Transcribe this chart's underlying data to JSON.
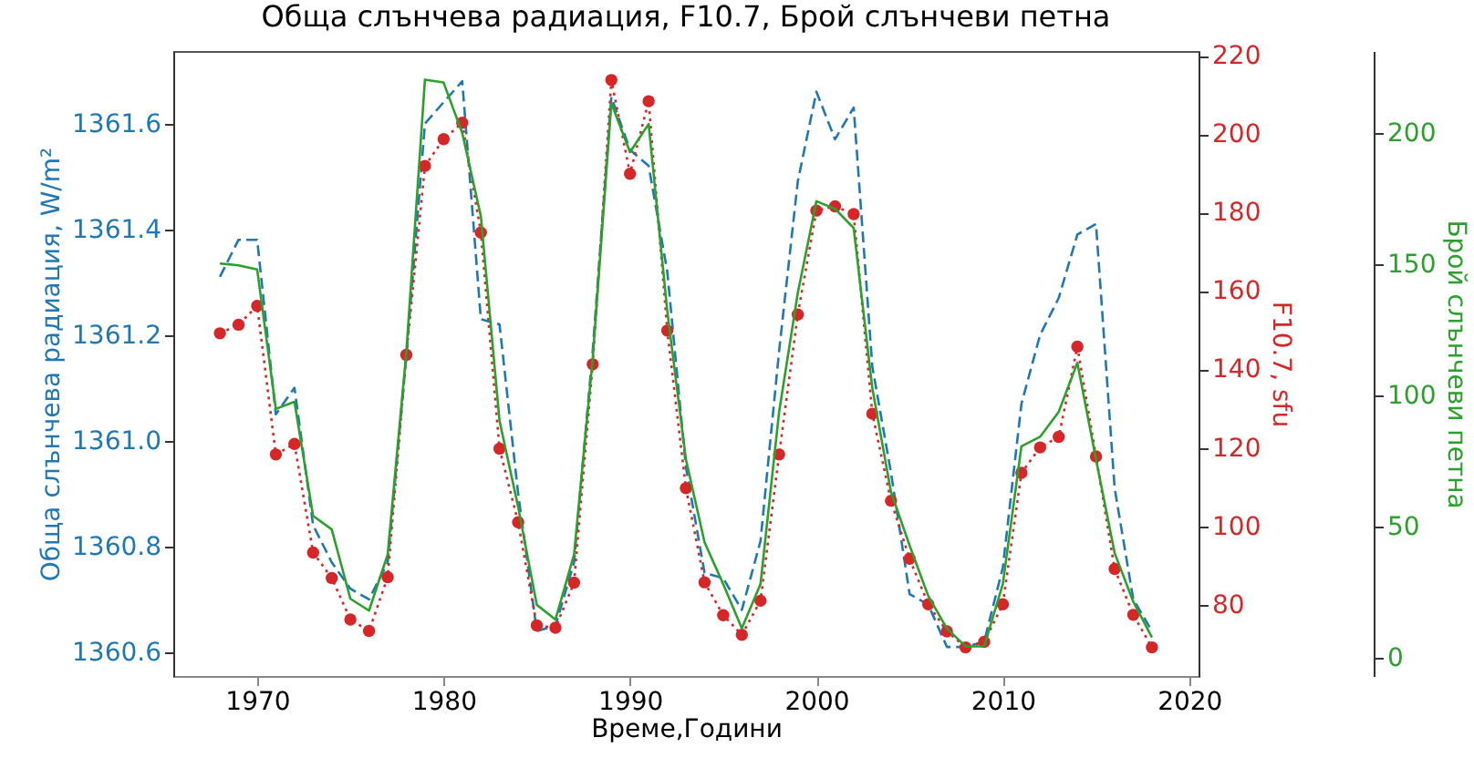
{
  "chart_data": {
    "type": "line",
    "title": "Обща слънчева радиация, F10.7, Брой слънчеви петна",
    "xlabel": "Време,Години",
    "ylabel": "Обща слънчева радиация, W/m²",
    "y2label": "F10.7, sfu",
    "y3label": "Брой слънчеви петна",
    "x": [
      1968,
      1969,
      1970,
      1971,
      1972,
      1973,
      1974,
      1975,
      1976,
      1977,
      1978,
      1979,
      1980,
      1981,
      1982,
      1983,
      1984,
      1985,
      1986,
      1987,
      1988,
      1989,
      1990,
      1991,
      1992,
      1993,
      1994,
      1995,
      1996,
      1997,
      1998,
      1999,
      2000,
      2001,
      2002,
      2003,
      2004,
      2005,
      2006,
      2007,
      2008,
      2009,
      2010,
      2011,
      2012,
      2013,
      2014,
      2015,
      2016,
      2017,
      2018
    ],
    "xlim": [
      1965.5,
      2020.5
    ],
    "xticks": [
      1970,
      1980,
      1990,
      2000,
      2010,
      2020
    ],
    "ylim": [
      1360.555,
      1361.737
    ],
    "yticks": [
      1360.6,
      1360.8,
      {
        "value": 1361,
        "label": "1361.0"
      },
      1361.2,
      1361.4,
      1361.6
    ],
    "y2lim": [
      61.8,
      221.2
    ],
    "y2ticks": [
      80,
      100,
      120,
      140,
      160,
      180,
      200,
      220
    ],
    "y3lim": [
      -6.8,
      231.2
    ],
    "y3ticks": [
      0,
      50,
      100,
      150,
      200
    ],
    "grid": false,
    "series": [
      {
        "axis": "y",
        "color": "#1f77b4",
        "line_style": "dashed",
        "marker": "none",
        "values": [
          1361.31,
          1361.38,
          1361.38,
          1361.05,
          1361.1,
          1360.84,
          1360.77,
          1360.72,
          1360.7,
          1360.77,
          1361.16,
          1361.6,
          1361.64,
          1361.68,
          1361.23,
          1361.22,
          1360.9,
          1360.64,
          1360.65,
          1360.77,
          1361.17,
          1361.65,
          1361.55,
          1361.52,
          1361.32,
          1360.95,
          1360.75,
          1360.74,
          1360.68,
          1360.81,
          1361.17,
          1361.49,
          1361.66,
          1361.57,
          1361.63,
          1361.14,
          1360.94,
          1360.71,
          1360.69,
          1360.61,
          1360.61,
          1360.62,
          1360.76,
          1361.07,
          1361.2,
          1361.27,
          1361.39,
          1361.41,
          1360.91,
          1360.7,
          1360.64
        ]
      },
      {
        "axis": "y2",
        "color": "#d62728",
        "line_style": "dotted",
        "marker": "circle",
        "values": [
          149.2,
          151.4,
          156.2,
          118.3,
          121.0,
          93.3,
          86.8,
          76.2,
          73.3,
          87.0,
          143.7,
          191.9,
          198.7,
          202.9,
          174.9,
          119.8,
          101.0,
          74.7,
          74.1,
          85.6,
          141.3,
          213.8,
          189.9,
          208.4,
          149.9,
          109.7,
          85.7,
          77.3,
          72.3,
          81.0,
          118.3,
          154.0,
          180.5,
          181.6,
          179.6,
          128.7,
          106.5,
          91.7,
          80.1,
          73.2,
          69.1,
          70.5,
          80.1,
          113.6,
          120.1,
          122.8,
          145.8,
          117.8,
          89.1,
          77.4,
          69.1
        ]
      },
      {
        "axis": "y3",
        "color": "#2ca02c",
        "line_style": "solid",
        "marker": "none",
        "values": [
          150.3,
          149.6,
          148.0,
          94.9,
          97.6,
          54.2,
          49.0,
          22.6,
          18.1,
          39.5,
          116.4,
          220.3,
          219.2,
          200.0,
          168.3,
          90.4,
          57.6,
          20.3,
          14.7,
          39.5,
          114.1,
          211.3,
          192.7,
          203.4,
          132.2,
          75.7,
          44.1,
          28.2,
          11.3,
          28.2,
          93.8,
          139.0,
          174.0,
          171.1,
          163.8,
          102.8,
          63.3,
          42.9,
          23.7,
          11.3,
          4.5,
          4.5,
          28.2,
          80.7,
          84.3,
          93.8,
          112.5,
          75.7,
          40.0,
          21.5,
          7.9
        ]
      }
    ]
  }
}
